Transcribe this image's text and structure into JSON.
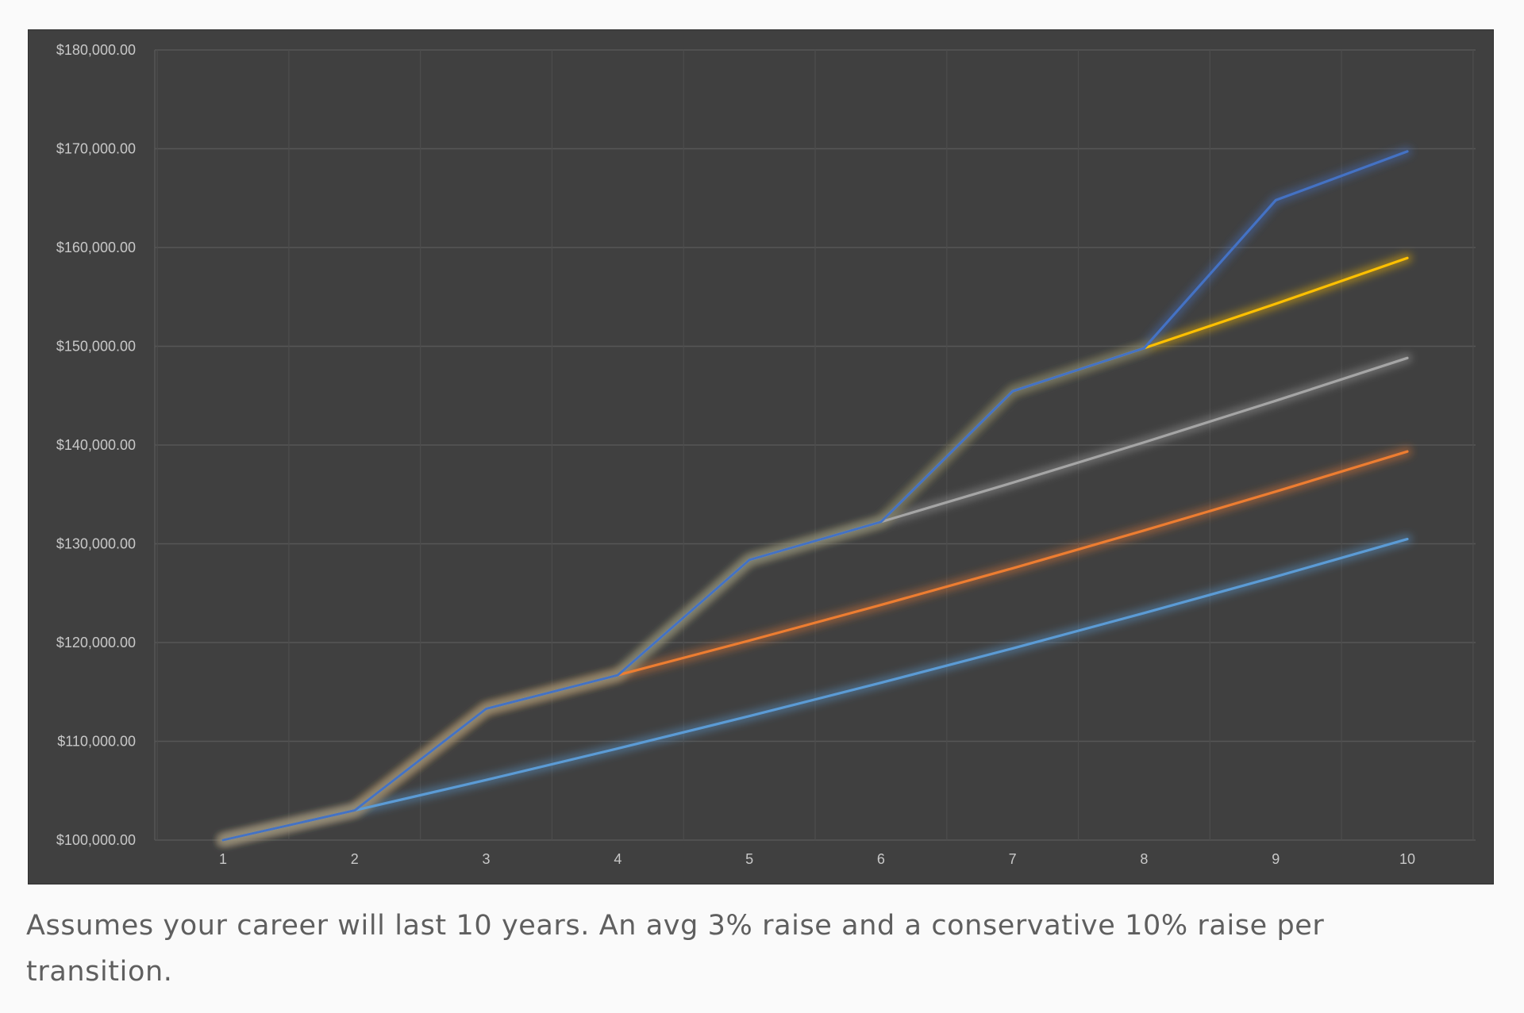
{
  "caption": "Assumes your career will last 10 years. An avg 3% raise and a conservative 10% raise per transition.",
  "chart_data": {
    "type": "line",
    "title": "",
    "xlabel": "",
    "ylabel": "",
    "x": [
      1,
      2,
      3,
      4,
      5,
      6,
      7,
      8,
      9,
      10
    ],
    "x_tick_labels": [
      "1",
      "2",
      "3",
      "4",
      "5",
      "6",
      "7",
      "8",
      "9",
      "10"
    ],
    "y_tick_labels": [
      "$100,000.00",
      "$110,000.00",
      "$120,000.00",
      "$130,000.00",
      "$140,000.00",
      "$150,000.00",
      "$160,000.00",
      "$170,000.00",
      "$180,000.00"
    ],
    "y_ticks": [
      100000,
      110000,
      120000,
      130000,
      140000,
      150000,
      160000,
      170000,
      180000
    ],
    "ylim": [
      100000,
      180000
    ],
    "grid": true,
    "legend": "none",
    "background": "#404040",
    "series": [
      {
        "color": "#5b9bd5",
        "values": [
          100000,
          103000,
          106090,
          109273,
          112551,
          115927,
          119405,
          122987,
          126677,
          130477
        ]
      },
      {
        "color": "#ed7d31",
        "values": [
          100000,
          103000,
          113300,
          116699,
          120200,
          123806,
          127520,
          131346,
          135286,
          139345
        ]
      },
      {
        "color": "#a5a5a5",
        "values": [
          100000,
          103000,
          113300,
          116699,
          128369,
          132220,
          136187,
          140273,
          144481,
          148815
        ]
      },
      {
        "color": "#ffc000",
        "values": [
          100000,
          103000,
          113300,
          116699,
          128369,
          132220,
          145442,
          149805,
          154299,
          158928
        ]
      },
      {
        "color": "#4472c4",
        "values": [
          100000,
          103000,
          113300,
          116699,
          128369,
          132220,
          145442,
          149805,
          164786,
          169730
        ]
      }
    ],
    "glow_color": "#7a8a6a"
  }
}
